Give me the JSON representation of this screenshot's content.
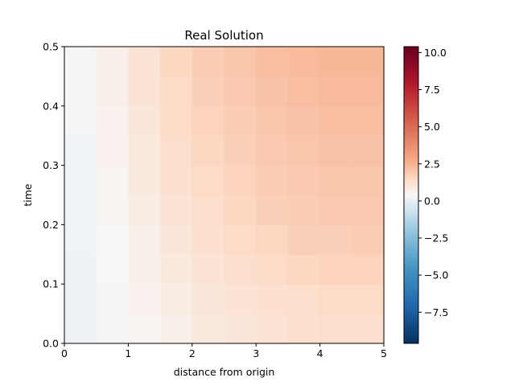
{
  "chart_data": {
    "type": "heatmap",
    "title": "Real Solution",
    "xlabel": "distance from origin",
    "ylabel": "time",
    "xlim": [
      0,
      5
    ],
    "ylim": [
      0,
      0.5
    ],
    "x_ticks": [
      "0",
      "1",
      "2",
      "3",
      "4",
      "5"
    ],
    "y_ticks": [
      "0.0",
      "0.1",
      "0.2",
      "0.3",
      "0.4",
      "0.5"
    ],
    "colormap": "RdBu_r",
    "colorbar": {
      "vmin": -9.6,
      "vmax": 10.4,
      "ticks": [
        -7.5,
        -5.0,
        -2.5,
        0.0,
        2.5,
        5.0,
        7.5,
        10.0
      ],
      "tick_labels": [
        "−7.5",
        "−5.0",
        "−2.5",
        "0.0",
        "2.5",
        "5.0",
        "7.5",
        "10.0"
      ]
    },
    "x_centers": [
      0.25,
      0.75,
      1.25,
      1.75,
      2.25,
      2.75,
      3.25,
      3.75,
      4.25,
      4.75
    ],
    "y_centers": [
      0.025,
      0.075,
      0.125,
      0.175,
      0.225,
      0.275,
      0.325,
      0.375,
      0.425,
      0.475
    ],
    "values": [
      [
        0.1,
        0.3,
        0.5,
        0.7,
        0.9,
        1.0,
        1.1,
        1.2,
        1.3,
        1.3
      ],
      [
        0.1,
        0.3,
        0.6,
        0.8,
        1.0,
        1.1,
        1.2,
        1.3,
        1.4,
        1.4
      ],
      [
        0.1,
        0.4,
        0.7,
        0.9,
        1.1,
        1.3,
        1.4,
        1.5,
        1.6,
        1.6
      ],
      [
        0.2,
        0.4,
        0.7,
        1.0,
        1.2,
        1.4,
        1.5,
        1.7,
        1.7,
        1.8
      ],
      [
        0.2,
        0.5,
        0.8,
        1.1,
        1.3,
        1.5,
        1.7,
        1.8,
        1.9,
        1.9
      ],
      [
        0.2,
        0.5,
        0.9,
        1.2,
        1.4,
        1.6,
        1.8,
        1.9,
        2.0,
        2.0
      ],
      [
        0.2,
        0.6,
        0.9,
        1.3,
        1.5,
        1.7,
        1.9,
        2.0,
        2.1,
        2.1
      ],
      [
        0.3,
        0.6,
        1.0,
        1.4,
        1.6,
        1.8,
        2.0,
        2.1,
        2.2,
        2.2
      ],
      [
        0.3,
        0.7,
        1.1,
        1.4,
        1.7,
        1.9,
        2.1,
        2.2,
        2.3,
        2.3
      ],
      [
        0.3,
        0.7,
        1.1,
        1.5,
        1.8,
        2.0,
        2.2,
        2.3,
        2.4,
        2.4
      ]
    ]
  }
}
